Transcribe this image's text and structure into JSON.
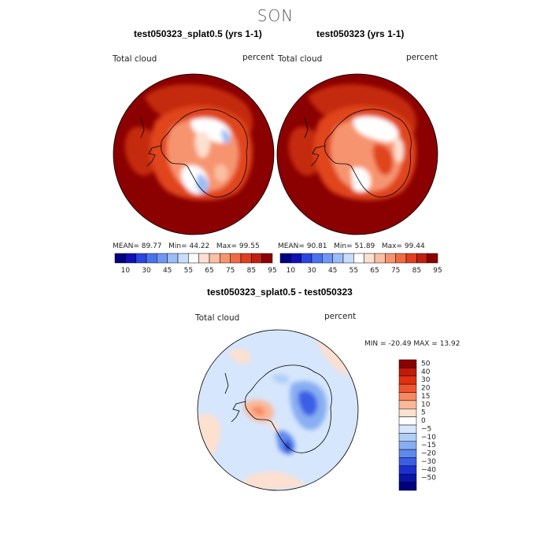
{
  "season": "SON",
  "panels": [
    {
      "title": "test050323_splat0.5 (yrs 1-1)",
      "variable": "Total cloud",
      "units": "percent",
      "stats": {
        "mean_label": "MEAN=",
        "mean": "89.77",
        "min_label": "Min=",
        "min": "44.22",
        "max_label": "Max=",
        "max": "99.55"
      }
    },
    {
      "title": "test050323 (yrs 1-1)",
      "variable": "Total cloud",
      "units": "percent",
      "stats": {
        "mean_label": "MEAN=",
        "mean": "90.81",
        "min_label": "Min=",
        "min": "51.89",
        "max_label": "Max=",
        "max": "99.44"
      }
    }
  ],
  "diff_panel": {
    "title": "test050323_splat0.5 - test050323",
    "variable": "Total cloud",
    "units": "percent",
    "min_label": "MIN =",
    "min": "-20.49",
    "max_label": "MAX =",
    "max": "13.92"
  },
  "colorbar_top": {
    "colors": [
      "#000080",
      "#1010b8",
      "#2a45e0",
      "#4a72ee",
      "#6f97f4",
      "#9cbcf8",
      "#c8dcfc",
      "#ffffff",
      "#fde0d0",
      "#fbbfa3",
      "#f7946f",
      "#f06a45",
      "#e0401e",
      "#c02010",
      "#8b0000"
    ],
    "tick_labels": [
      "10",
      "30",
      "45",
      "55",
      "65",
      "75",
      "85",
      "95"
    ]
  },
  "colorbar_diff": {
    "colors": [
      "#8b0000",
      "#c01a08",
      "#e03010",
      "#f05530",
      "#f88860",
      "#fbb898",
      "#fde0d0",
      "#ffffff",
      "#d6e6fc",
      "#b0cef8",
      "#88aef2",
      "#5e8aee",
      "#3a5ee6",
      "#1c30d0",
      "#0814a8",
      "#000080"
    ],
    "tick_labels": [
      "50",
      "40",
      "30",
      "20",
      "15",
      "10",
      "5",
      "0",
      "−5",
      "−10",
      "−15",
      "−20",
      "−30",
      "−40",
      "−50"
    ]
  }
}
